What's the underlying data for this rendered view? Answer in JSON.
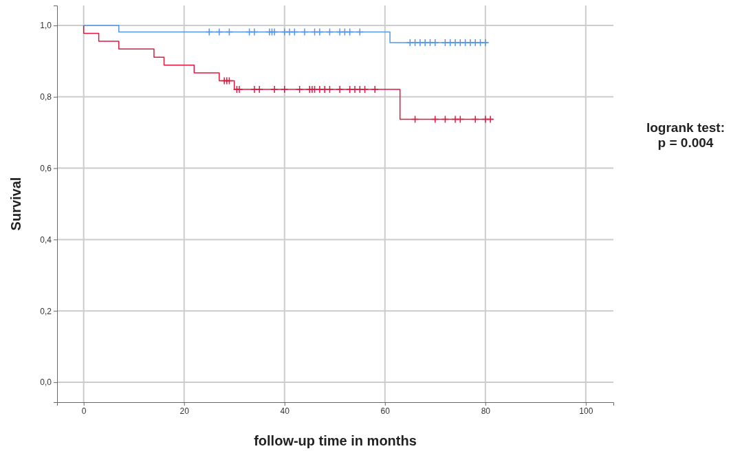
{
  "chart_data": {
    "type": "step",
    "xlabel": "follow-up time in months",
    "ylabel": "Survival",
    "annotations": [
      "logrank test:\np = 0.004"
    ],
    "xlim": [
      -5.3,
      105.5
    ],
    "xticks": [
      0,
      20,
      40,
      60,
      80,
      100
    ],
    "ylim": [
      -0.056,
      1.056
    ],
    "yticks": [
      {
        "value": 0,
        "label": "0,0"
      },
      {
        "value": 0.2,
        "label": "0,2"
      },
      {
        "value": 0.4,
        "label": "0,4"
      },
      {
        "value": 0.6,
        "label": "0,6"
      },
      {
        "value": 0.8,
        "label": "0,8"
      },
      {
        "value": 1,
        "label": "1,0"
      }
    ],
    "grid": true,
    "line_style": "solid",
    "series": [
      {
        "color": "#5595e6",
        "x": [
          0,
          7,
          61,
          80.5
        ],
        "values": [
          1,
          0.982,
          0.952,
          0.952
        ]
      },
      {
        "color": "#e0173f",
        "x": [
          0,
          0,
          3,
          7,
          14,
          16,
          22,
          27,
          30,
          63,
          81.5
        ],
        "values": [
          1,
          0.978,
          0.956,
          0.934,
          0.911,
          0.889,
          0.867,
          0.845,
          0.821,
          0.737,
          0.737
        ]
      },
      {
        "type": "scatter",
        "marker": "cross",
        "color": "#5595e6",
        "x": [
          25,
          27,
          29,
          33,
          34,
          37,
          37.5,
          38,
          40,
          41,
          42,
          44,
          46,
          47,
          49,
          51,
          52,
          53,
          55,
          65,
          66,
          67,
          68,
          69,
          70,
          72,
          73,
          74,
          75,
          76,
          77,
          78,
          79,
          80
        ],
        "values": [
          0.982,
          0.982,
          0.982,
          0.982,
          0.982,
          0.982,
          0.982,
          0.982,
          0.982,
          0.982,
          0.982,
          0.982,
          0.982,
          0.982,
          0.982,
          0.982,
          0.982,
          0.982,
          0.982,
          0.952,
          0.952,
          0.952,
          0.952,
          0.952,
          0.952,
          0.952,
          0.952,
          0.952,
          0.952,
          0.952,
          0.952,
          0.952,
          0.952,
          0.952
        ]
      },
      {
        "type": "scatter",
        "marker": "cross",
        "color": "#e0173f",
        "x": [
          28,
          28.5,
          29,
          30.5,
          31,
          34,
          35,
          38,
          40,
          43,
          45,
          45.5,
          46,
          47,
          48,
          49,
          51,
          53,
          54,
          55,
          56,
          58,
          66,
          70,
          72,
          74,
          75,
          78,
          80,
          81
        ],
        "values": [
          0.845,
          0.845,
          0.845,
          0.821,
          0.821,
          0.821,
          0.821,
          0.821,
          0.821,
          0.821,
          0.821,
          0.821,
          0.821,
          0.821,
          0.821,
          0.821,
          0.821,
          0.821,
          0.821,
          0.821,
          0.821,
          0.821,
          0.737,
          0.737,
          0.737,
          0.737,
          0.737,
          0.737,
          0.737,
          0.737
        ]
      }
    ]
  }
}
